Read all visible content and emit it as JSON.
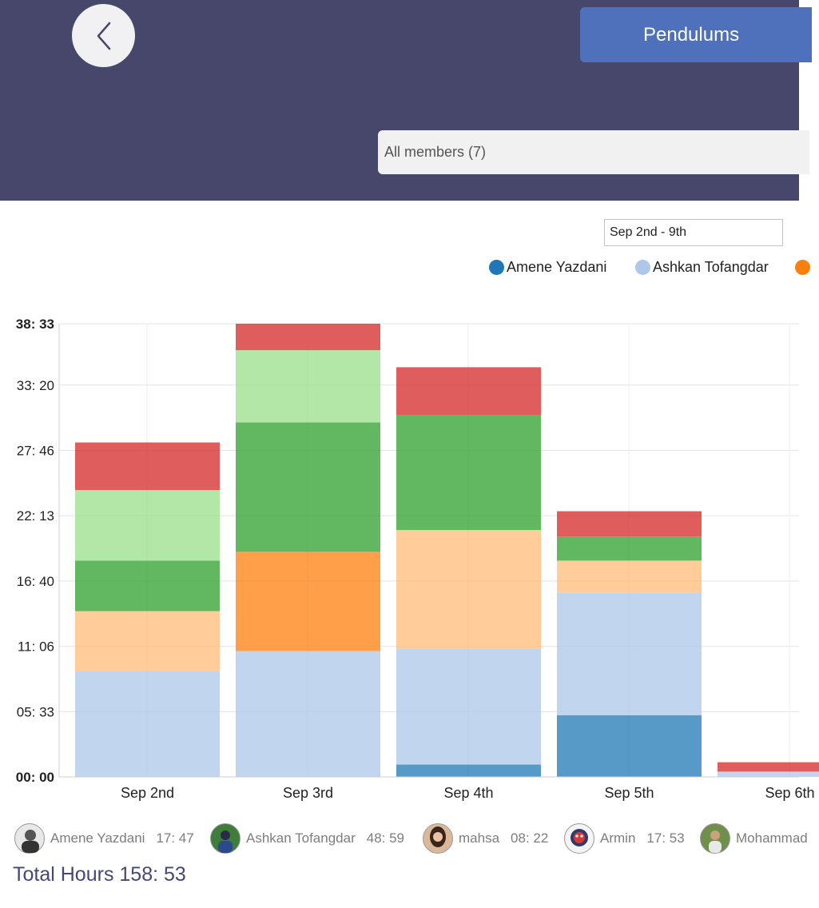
{
  "header": {
    "title_button": "Pendulums",
    "member_select": "All members (7)"
  },
  "date_range": "Sep 2nd - 9th",
  "legend": [
    {
      "label": "Amene Yazdani",
      "color": "#1f77b4"
    },
    {
      "label": "Ashkan Tofangdar",
      "color": "#aec7e8"
    },
    {
      "label": "",
      "color": "#ff7f0e"
    }
  ],
  "chart_data": {
    "type": "bar",
    "stacked": true,
    "categories": [
      "Sep 2nd",
      "Sep 3rd",
      "Sep 4th",
      "Sep 5th",
      "Sep 6th"
    ],
    "y_tick_labels": [
      "00: 00",
      "05: 33",
      "11: 06",
      "16: 40",
      "22: 13",
      "27: 46",
      "33: 20",
      "38: 33"
    ],
    "y_tick_values": [
      0,
      5.55,
      11.1,
      16.67,
      22.22,
      27.77,
      33.33,
      38.55
    ],
    "ylim": [
      0,
      38.55
    ],
    "grid": true,
    "series": [
      {
        "name": "Amene Yazdani",
        "color": "#1f77b4",
        "values": [
          0,
          0,
          1.05,
          5.25,
          0
        ]
      },
      {
        "name": "Ashkan Tofangdar",
        "color": "#aec7e8",
        "values": [
          9.0,
          10.7,
          9.85,
          10.4,
          0.45
        ]
      },
      {
        "color": "#ff7f0e",
        "values": [
          0,
          8.45,
          0,
          0,
          0
        ]
      },
      {
        "color": "#ffbb78",
        "values": [
          5.1,
          0,
          10.1,
          2.75,
          0
        ]
      },
      {
        "color": "#2ca02c",
        "values": [
          4.3,
          11.0,
          9.8,
          2.05,
          0
        ]
      },
      {
        "color": "#98df8a",
        "values": [
          6.0,
          6.15,
          0,
          0,
          0
        ]
      },
      {
        "color": "#d62728",
        "values": [
          4.05,
          2.25,
          4.05,
          2.15,
          0.8
        ]
      }
    ]
  },
  "members": [
    {
      "name": "Amene Yazdani",
      "hours": "17: 47"
    },
    {
      "name": "Ashkan Tofangdar",
      "hours": "48: 59"
    },
    {
      "name": "mahsa",
      "hours": "08: 22"
    },
    {
      "name": "Armin",
      "hours": "17: 53"
    },
    {
      "name": "Mohammad",
      "hours": ""
    }
  ],
  "total_label": "Total Hours 158: 53"
}
